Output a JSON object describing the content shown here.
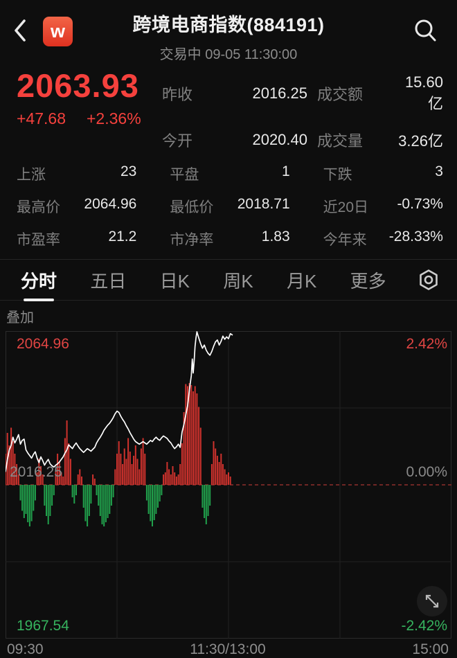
{
  "header": {
    "logo_text": "w",
    "title": "跨境电商指数(884191)",
    "subtitle": "交易中 09-05 11:30:00"
  },
  "quote": {
    "price": "2063.93",
    "change": "+47.68",
    "change_pct": "+2.36%",
    "summary": [
      {
        "label": "昨收",
        "value": "2016.25"
      },
      {
        "label": "成交额",
        "value": "15.60亿"
      },
      {
        "label": "今开",
        "value": "2020.40"
      },
      {
        "label": "成交量",
        "value": "3.26亿"
      }
    ]
  },
  "stats_rows": [
    {
      "c0l": "上涨",
      "c0v": "23",
      "c1l": "平盘",
      "c1v": "1",
      "c2l": "下跌",
      "c2v": "3"
    },
    {
      "c0l": "最高价",
      "c0v": "2064.96",
      "c1l": "最低价",
      "c1v": "2018.71",
      "c2l": "近20日",
      "c2v": "-0.73%"
    },
    {
      "c0l": "市盈率",
      "c0v": "21.2",
      "c1l": "市净率",
      "c1v": "1.83",
      "c2l": "今年来",
      "c2v": "-28.33%"
    }
  ],
  "tabs": {
    "items": [
      "分时",
      "五日",
      "日K",
      "周K",
      "月K",
      "更多"
    ],
    "active": "分时"
  },
  "overlay_label": "叠加",
  "chart_data": {
    "type": "line",
    "title": "分时走势",
    "x_range_minutes": [
      0,
      240
    ],
    "x_axis_labels": [
      "09:30",
      "11:30/13:00",
      "15:00"
    ],
    "y_axis": {
      "price_max": 2064.96,
      "price_mid": 2016.25,
      "price_min": 1967.54,
      "pct_max": 2.42,
      "pct_mid": 0.0,
      "pct_min": -2.42
    },
    "prev_close": 2016.25,
    "labels": {
      "high_price": "2064.96",
      "high_pct": "2.42%",
      "mid_price": "2016.25",
      "mid_pct": "0.00%",
      "low_price": "1967.54",
      "low_pct": "-2.42%"
    },
    "colors": {
      "line": "#ffffff",
      "up": "#cf322d",
      "down": "#21a14c",
      "grid": "#212121",
      "border": "#2c2c2c",
      "prev_close_line": "#8f2f2c",
      "accent_red": "#f5413d",
      "accent_green": "#36b35e"
    },
    "line_pct": [
      [
        0,
        0.21
      ],
      [
        1,
        0.4
      ],
      [
        2,
        0.55
      ],
      [
        3,
        0.62
      ],
      [
        4,
        0.75
      ],
      [
        5,
        0.66
      ],
      [
        6,
        0.72
      ],
      [
        7,
        0.79
      ],
      [
        8,
        0.64
      ],
      [
        9,
        0.7
      ],
      [
        10,
        0.72
      ],
      [
        11,
        0.55
      ],
      [
        12,
        0.5
      ],
      [
        13,
        0.46
      ],
      [
        14,
        0.42
      ],
      [
        15,
        0.48
      ],
      [
        16,
        0.52
      ],
      [
        17,
        0.42
      ],
      [
        18,
        0.35
      ],
      [
        19,
        0.44
      ],
      [
        20,
        0.38
      ],
      [
        21,
        0.31
      ],
      [
        22,
        0.36
      ],
      [
        23,
        0.4
      ],
      [
        24,
        0.33
      ],
      [
        25,
        0.3
      ],
      [
        26,
        0.28
      ],
      [
        27,
        0.31
      ],
      [
        28,
        0.33
      ],
      [
        29,
        0.36
      ],
      [
        30,
        0.4
      ],
      [
        31,
        0.44
      ],
      [
        32,
        0.5
      ],
      [
        33,
        0.55
      ],
      [
        34,
        0.63
      ],
      [
        35,
        0.6
      ],
      [
        36,
        0.57
      ],
      [
        37,
        0.62
      ],
      [
        38,
        0.66
      ],
      [
        39,
        0.61
      ],
      [
        40,
        0.57
      ],
      [
        41,
        0.54
      ],
      [
        42,
        0.51
      ],
      [
        43,
        0.54
      ],
      [
        44,
        0.57
      ],
      [
        45,
        0.55
      ],
      [
        46,
        0.53
      ],
      [
        47,
        0.56
      ],
      [
        48,
        0.59
      ],
      [
        49,
        0.66
      ],
      [
        50,
        0.71
      ],
      [
        51,
        0.75
      ],
      [
        52,
        0.8
      ],
      [
        53,
        0.86
      ],
      [
        54,
        0.9
      ],
      [
        55,
        0.94
      ],
      [
        56,
        0.97
      ],
      [
        57,
        1.01
      ],
      [
        58,
        1.06
      ],
      [
        59,
        1.12
      ],
      [
        60,
        1.16
      ],
      [
        61,
        1.14
      ],
      [
        62,
        1.08
      ],
      [
        63,
        1.03
      ],
      [
        64,
        0.99
      ],
      [
        65,
        0.93
      ],
      [
        66,
        0.88
      ],
      [
        67,
        0.82
      ],
      [
        68,
        0.77
      ],
      [
        69,
        0.72
      ],
      [
        70,
        0.68
      ],
      [
        71,
        0.66
      ],
      [
        72,
        0.64
      ],
      [
        73,
        0.66
      ],
      [
        74,
        0.68
      ],
      [
        75,
        0.66
      ],
      [
        76,
        0.64
      ],
      [
        77,
        0.67
      ],
      [
        78,
        0.7
      ],
      [
        79,
        0.68
      ],
      [
        80,
        0.72
      ],
      [
        81,
        0.75
      ],
      [
        82,
        0.72
      ],
      [
        83,
        0.7
      ],
      [
        84,
        0.74
      ],
      [
        85,
        0.77
      ],
      [
        86,
        0.75
      ],
      [
        87,
        0.73
      ],
      [
        88,
        0.69
      ],
      [
        89,
        0.66
      ],
      [
        90,
        0.61
      ],
      [
        91,
        0.57
      ],
      [
        92,
        0.6
      ],
      [
        93,
        0.64
      ],
      [
        94,
        0.59
      ],
      [
        95,
        0.83
      ],
      [
        96,
        0.95
      ],
      [
        97,
        1.1
      ],
      [
        98,
        1.25
      ],
      [
        99,
        1.5
      ],
      [
        100,
        1.72
      ],
      [
        100.5,
        1.98
      ],
      [
        101,
        1.76
      ],
      [
        101.5,
        1.95
      ],
      [
        102,
        2.18
      ],
      [
        102.5,
        2.31
      ],
      [
        103,
        2.42
      ],
      [
        103.5,
        2.36
      ],
      [
        104,
        2.31
      ],
      [
        105,
        2.22
      ],
      [
        106,
        2.15
      ],
      [
        107,
        2.2
      ],
      [
        108,
        2.12
      ],
      [
        109,
        2.07
      ],
      [
        110,
        2.04
      ],
      [
        111,
        2.1
      ],
      [
        112,
        2.18
      ],
      [
        113,
        2.25
      ],
      [
        114,
        2.28
      ],
      [
        115,
        2.2
      ],
      [
        116,
        2.26
      ],
      [
        117,
        2.34
      ],
      [
        118,
        2.29
      ],
      [
        119,
        2.33
      ],
      [
        120,
        2.3
      ],
      [
        121,
        2.38
      ],
      [
        122,
        2.36
      ]
    ],
    "bars": [
      [
        0,
        0.3
      ],
      [
        1,
        0.5
      ],
      [
        2,
        0.38
      ],
      [
        3,
        0.55
      ],
      [
        4,
        0.42
      ],
      [
        5,
        0.3
      ],
      [
        6,
        0.2
      ],
      [
        7,
        0.1
      ],
      [
        8,
        -0.15
      ],
      [
        9,
        -0.25
      ],
      [
        10,
        -0.32
      ],
      [
        11,
        -0.28
      ],
      [
        12,
        -0.36
      ],
      [
        13,
        -0.4
      ],
      [
        14,
        -0.35
      ],
      [
        15,
        -0.25
      ],
      [
        16,
        -0.15
      ],
      [
        17,
        0.12
      ],
      [
        18,
        0.25
      ],
      [
        19,
        0.18
      ],
      [
        20,
        0.1
      ],
      [
        21,
        -0.2
      ],
      [
        22,
        -0.3
      ],
      [
        23,
        -0.38
      ],
      [
        24,
        -0.3
      ],
      [
        25,
        -0.2
      ],
      [
        26,
        -0.1
      ],
      [
        27,
        0.15
      ],
      [
        28,
        0.3
      ],
      [
        29,
        0.22
      ],
      [
        30,
        0.12
      ],
      [
        31,
        0.08
      ],
      [
        32,
        0.45
      ],
      [
        33,
        0.62
      ],
      [
        34,
        0.4
      ],
      [
        35,
        0.25
      ],
      [
        36,
        -0.12
      ],
      [
        37,
        -0.18
      ],
      [
        38,
        -0.1
      ],
      [
        39,
        0.1
      ],
      [
        40,
        0.15
      ],
      [
        41,
        0.08
      ],
      [
        42,
        -0.22
      ],
      [
        43,
        -0.35
      ],
      [
        44,
        -0.4
      ],
      [
        45,
        -0.3
      ],
      [
        46,
        -0.18
      ],
      [
        47,
        0.1
      ],
      [
        48,
        0.06
      ],
      [
        49,
        -0.1
      ],
      [
        50,
        -0.2
      ],
      [
        51,
        -0.3
      ],
      [
        52,
        -0.38
      ],
      [
        53,
        -0.4
      ],
      [
        54,
        -0.36
      ],
      [
        55,
        -0.32
      ],
      [
        56,
        -0.28
      ],
      [
        57,
        -0.2
      ],
      [
        58,
        -0.12
      ],
      [
        59,
        0.15
      ],
      [
        60,
        0.3
      ],
      [
        61,
        0.42
      ],
      [
        62,
        0.3
      ],
      [
        63,
        0.2
      ],
      [
        64,
        0.35
      ],
      [
        65,
        0.25
      ],
      [
        66,
        0.45
      ],
      [
        67,
        0.32
      ],
      [
        68,
        0.2
      ],
      [
        69,
        0.28
      ],
      [
        70,
        0.38
      ],
      [
        71,
        0.25
      ],
      [
        72,
        0.15
      ],
      [
        73,
        0.35
      ],
      [
        74,
        0.45
      ],
      [
        75,
        0.3
      ],
      [
        76,
        -0.15
      ],
      [
        77,
        -0.28
      ],
      [
        78,
        -0.35
      ],
      [
        79,
        -0.4
      ],
      [
        80,
        -0.34
      ],
      [
        81,
        -0.28
      ],
      [
        82,
        -0.22
      ],
      [
        83,
        -0.16
      ],
      [
        84,
        -0.1
      ],
      [
        85,
        0.1
      ],
      [
        86,
        0.12
      ],
      [
        87,
        0.22
      ],
      [
        88,
        0.15
      ],
      [
        89,
        0.1
      ],
      [
        90,
        0.18
      ],
      [
        91,
        0.12
      ],
      [
        92,
        0.08
      ],
      [
        93,
        0.1
      ],
      [
        94,
        0.2
      ],
      [
        95,
        0.4
      ],
      [
        96,
        0.7
      ],
      [
        97,
        0.97
      ],
      [
        98,
        0.95
      ],
      [
        99,
        0.98
      ],
      [
        100,
        0.96
      ],
      [
        101,
        0.9
      ],
      [
        102,
        0.95
      ],
      [
        103,
        0.88
      ],
      [
        104,
        0.75
      ],
      [
        105,
        0.55
      ],
      [
        106,
        -0.22
      ],
      [
        107,
        -0.32
      ],
      [
        108,
        -0.38
      ],
      [
        109,
        -0.3
      ],
      [
        110,
        -0.2
      ],
      [
        111,
        0.2
      ],
      [
        112,
        0.42
      ],
      [
        113,
        0.35
      ],
      [
        114,
        0.28
      ],
      [
        115,
        0.22
      ],
      [
        116,
        0.3
      ],
      [
        117,
        0.2
      ],
      [
        118,
        0.15
      ],
      [
        119,
        0.1
      ],
      [
        120,
        0.12
      ],
      [
        121,
        0.08
      ]
    ]
  }
}
